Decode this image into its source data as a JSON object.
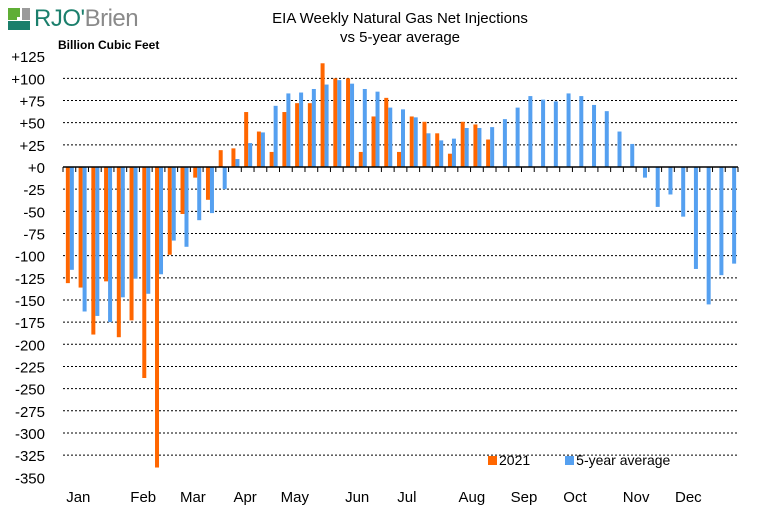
{
  "header": {
    "logo_primary": "RJO",
    "logo_secondary": "Brien",
    "logo_apostrophe": "'",
    "unit_label": "Billion Cubic Feet"
  },
  "colors": {
    "series_2021": "#ff6600",
    "series_5yr": "#55a0f0",
    "logo_green": "#5fae35",
    "logo_teal": "#1b7f6c",
    "logo_grey": "#9a9a9a"
  },
  "chart_data": {
    "type": "bar",
    "title": "EIA Weekly Natural Gas Net Injections",
    "subtitle": "vs 5-year average",
    "ylabel": "Billion Cubic Feet",
    "xlabel": "",
    "ylim": [
      -350,
      125
    ],
    "y_ticks": [
      "+125",
      "+100",
      "+75",
      "+50",
      "+25",
      "+0",
      "-25",
      "-50",
      "-75",
      "-100",
      "-125",
      "-150",
      "-175",
      "-200",
      "-225",
      "-250",
      "-275",
      "-300",
      "-325",
      "-350"
    ],
    "y_tick_values": [
      125,
      100,
      75,
      50,
      25,
      0,
      -25,
      -50,
      -75,
      -100,
      -125,
      -150,
      -175,
      -200,
      -225,
      -250,
      -275,
      -300,
      -325,
      -350
    ],
    "weeks": 53,
    "x_month_labels": [
      {
        "label": "Jan",
        "week": 1.2
      },
      {
        "label": "Feb",
        "week": 6.3
      },
      {
        "label": "Mar",
        "week": 10.2
      },
      {
        "label": "Apr",
        "week": 14.3
      },
      {
        "label": "May",
        "week": 18.2
      },
      {
        "label": "Jun",
        "week": 23.1
      },
      {
        "label": "Jul",
        "week": 27.0
      },
      {
        "label": "Aug",
        "week": 32.1
      },
      {
        "label": "Sep",
        "week": 36.2
      },
      {
        "label": "Oct",
        "week": 40.2
      },
      {
        "label": "Nov",
        "week": 45.0
      },
      {
        "label": "Dec",
        "week": 49.1
      }
    ],
    "grid": true,
    "legend_position": "bottom-right",
    "series": [
      {
        "name": "2021",
        "color": "#ff6600",
        "values": [
          -131,
          -136,
          -189,
          -129,
          -192,
          -173,
          -238,
          -339,
          -99,
          -53,
          -12,
          -37,
          19,
          21,
          62,
          40,
          17,
          62,
          72,
          72,
          117,
          100,
          100,
          17,
          57,
          78,
          17,
          57,
          51,
          38,
          15,
          51,
          48,
          31
        ]
      },
      {
        "name": "5-year average",
        "color": "#55a0f0",
        "values": [
          -116,
          -163,
          -168,
          -175,
          -147,
          -126,
          -143,
          -121,
          -83,
          -90,
          -60,
          -52,
          -25,
          9,
          27,
          39,
          69,
          83,
          84,
          88,
          93,
          98,
          94,
          88,
          85,
          67,
          65,
          56,
          38,
          30,
          32,
          44,
          44,
          45,
          54,
          67,
          80,
          76,
          74,
          83,
          80,
          70,
          63,
          40,
          26,
          -12,
          -45,
          -31,
          -56,
          -115,
          -155,
          -122,
          -109
        ]
      }
    ]
  }
}
